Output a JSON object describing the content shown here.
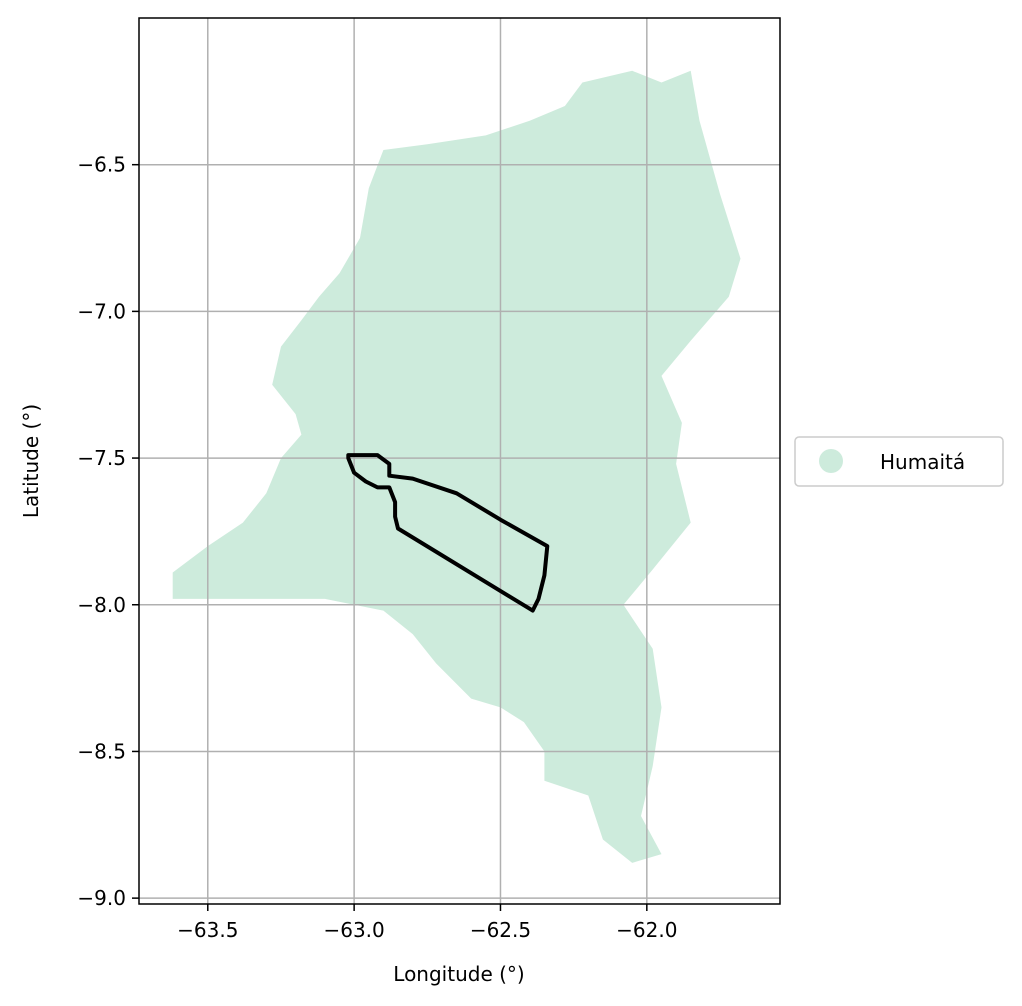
{
  "chart_data": {
    "type": "map",
    "title": "",
    "xlabel": "Longitude (°)",
    "ylabel": "Latitude (°)",
    "xlim": [
      -63.735,
      -61.545
    ],
    "ylim": [
      -9.02,
      -6.0
    ],
    "x_ticks": [
      -63.5,
      -63.0,
      -62.5,
      -62.0
    ],
    "x_tick_labels": [
      "−63.5",
      "−63.0",
      "−62.5",
      "−62.0"
    ],
    "y_ticks": [
      -6.5,
      -7.0,
      -7.5,
      -8.0,
      -8.5,
      -9.0
    ],
    "y_tick_labels": [
      "−6.5",
      "−7.0",
      "−7.5",
      "−8.0",
      "−8.5",
      "−9.0"
    ],
    "grid": true,
    "legend_position": "right",
    "regions": [
      {
        "name": "Humaitá",
        "color": "#cdebdc",
        "boundary": [
          [
            -63.62,
            -7.98
          ],
          [
            -63.62,
            -7.89
          ],
          [
            -63.5,
            -7.8
          ],
          [
            -63.38,
            -7.72
          ],
          [
            -63.3,
            -7.62
          ],
          [
            -63.25,
            -7.5
          ],
          [
            -63.18,
            -7.42
          ],
          [
            -63.2,
            -7.35
          ],
          [
            -63.28,
            -7.25
          ],
          [
            -63.25,
            -7.12
          ],
          [
            -63.18,
            -7.03
          ],
          [
            -63.12,
            -6.95
          ],
          [
            -63.05,
            -6.87
          ],
          [
            -62.98,
            -6.75
          ],
          [
            -62.95,
            -6.58
          ],
          [
            -62.9,
            -6.45
          ],
          [
            -62.75,
            -6.43
          ],
          [
            -62.55,
            -6.4
          ],
          [
            -62.4,
            -6.35
          ],
          [
            -62.28,
            -6.3
          ],
          [
            -62.22,
            -6.22
          ],
          [
            -62.05,
            -6.18
          ],
          [
            -61.95,
            -6.22
          ],
          [
            -61.85,
            -6.18
          ],
          [
            -61.82,
            -6.35
          ],
          [
            -61.75,
            -6.6
          ],
          [
            -61.68,
            -6.82
          ],
          [
            -61.72,
            -6.95
          ],
          [
            -61.85,
            -7.1
          ],
          [
            -61.95,
            -7.22
          ],
          [
            -61.88,
            -7.38
          ],
          [
            -61.9,
            -7.52
          ],
          [
            -61.85,
            -7.72
          ],
          [
            -61.98,
            -7.88
          ],
          [
            -62.08,
            -8.0
          ],
          [
            -61.98,
            -8.15
          ],
          [
            -61.95,
            -8.35
          ],
          [
            -61.98,
            -8.55
          ],
          [
            -62.02,
            -8.72
          ],
          [
            -61.95,
            -8.85
          ],
          [
            -62.05,
            -8.88
          ],
          [
            -62.15,
            -8.8
          ],
          [
            -62.2,
            -8.65
          ],
          [
            -62.35,
            -8.6
          ],
          [
            -62.35,
            -8.5
          ],
          [
            -62.42,
            -8.4
          ],
          [
            -62.5,
            -8.35
          ],
          [
            -62.6,
            -8.32
          ],
          [
            -62.72,
            -8.2
          ],
          [
            -62.8,
            -8.1
          ],
          [
            -62.9,
            -8.02
          ],
          [
            -63.1,
            -7.98
          ]
        ],
        "outline": [
          [
            -63.02,
            -7.49
          ],
          [
            -62.92,
            -7.49
          ],
          [
            -62.88,
            -7.52
          ],
          [
            -62.88,
            -7.56
          ],
          [
            -62.8,
            -7.57
          ],
          [
            -62.65,
            -7.62
          ],
          [
            -62.5,
            -7.71
          ],
          [
            -62.34,
            -7.8
          ],
          [
            -62.35,
            -7.9
          ],
          [
            -62.37,
            -7.98
          ],
          [
            -62.39,
            -8.02
          ],
          [
            -62.85,
            -7.74
          ],
          [
            -62.86,
            -7.7
          ],
          [
            -62.86,
            -7.65
          ],
          [
            -62.88,
            -7.6
          ],
          [
            -62.92,
            -7.6
          ],
          [
            -62.96,
            -7.58
          ],
          [
            -63.0,
            -7.55
          ],
          [
            -63.02,
            -7.5
          ]
        ]
      }
    ]
  }
}
